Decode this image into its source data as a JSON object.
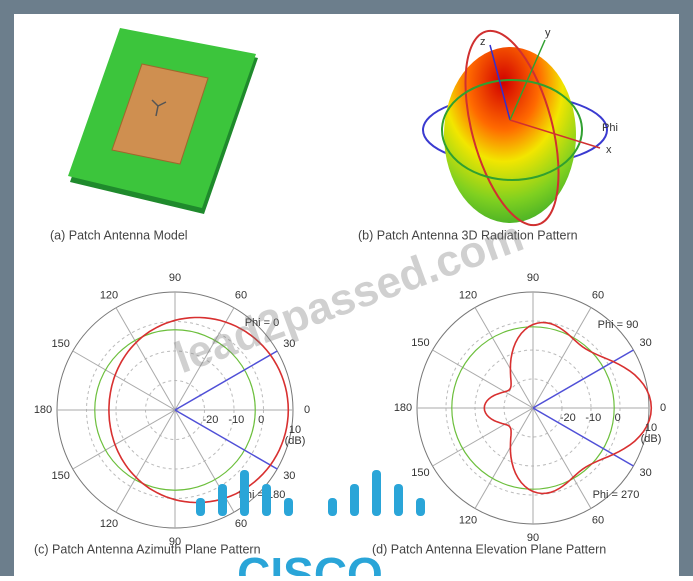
{
  "panels": [
    {
      "caption": "(a) Patch Antenna Model"
    },
    {
      "caption": "(b) Patch Antenna 3D Radiation Pattern",
      "axes": [
        "z",
        "y",
        "Phi",
        "x"
      ]
    },
    {
      "caption": "(c) Patch Antenna Azimuth Plane Pattern",
      "angle_labels": [
        "0",
        "30",
        "60",
        "90",
        "120",
        "150",
        "180",
        "150",
        "120",
        "90",
        "60",
        "30"
      ],
      "radial_labels": [
        "-20",
        "-10",
        "0",
        "10"
      ],
      "unit": "(dB)",
      "cut_labels": [
        "Phi = 0",
        "Phi = 180"
      ]
    },
    {
      "caption": "(d) Patch Antenna Elevation Plane Pattern",
      "angle_labels": [
        "0",
        "30",
        "60",
        "90",
        "120",
        "150",
        "180",
        "150",
        "120",
        "90",
        "60",
        "30"
      ],
      "radial_labels": [
        "-20",
        "-10",
        "0",
        "10"
      ],
      "unit": "(dB)",
      "cut_labels": [
        "Phi = 90",
        "Phi = 270"
      ]
    }
  ],
  "watermark": "lead2passed.com",
  "logo": "CISCO"
}
